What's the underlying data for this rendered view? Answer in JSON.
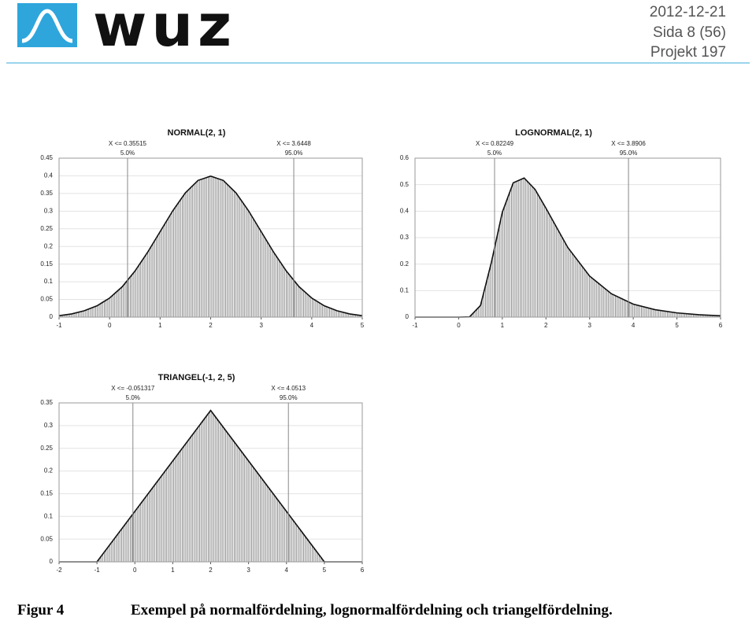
{
  "header": {
    "logo": "wuz",
    "date": "2012-12-21",
    "page": "Sida 8 (56)",
    "project": "Projekt 197"
  },
  "chart_data": [
    {
      "type": "area",
      "title": "NORMAL(2, 1)",
      "x": [
        -1,
        -0.75,
        -0.5,
        -0.25,
        0,
        0.25,
        0.5,
        0.75,
        1,
        1.25,
        1.5,
        1.75,
        2,
        2.25,
        2.5,
        2.75,
        3,
        3.25,
        3.5,
        3.75,
        4,
        4.25,
        4.5,
        4.75,
        5
      ],
      "values": [
        0.004,
        0.009,
        0.018,
        0.032,
        0.054,
        0.086,
        0.13,
        0.183,
        0.242,
        0.301,
        0.352,
        0.387,
        0.399,
        0.387,
        0.352,
        0.301,
        0.242,
        0.183,
        0.13,
        0.086,
        0.054,
        0.032,
        0.018,
        0.009,
        0.004
      ],
      "xlim": [
        -1,
        5
      ],
      "xticks": [
        -1,
        0,
        1,
        2,
        3,
        4,
        5
      ],
      "ylim": [
        0,
        0.45
      ],
      "yticks": [
        0,
        0.05,
        0.1,
        0.15,
        0.2,
        0.25,
        0.3,
        0.35,
        0.4,
        0.45
      ],
      "annotations": [
        {
          "x": 0.35515,
          "label": "X <= 0.35515",
          "percent": "5.0%"
        },
        {
          "x": 3.6448,
          "label": "X <= 3.6448",
          "percent": "95.0%"
        }
      ]
    },
    {
      "type": "area",
      "title": "LOGNORMAL(2, 1)",
      "x": [
        -1,
        0,
        0.25,
        0.5,
        0.75,
        1,
        1.25,
        1.5,
        1.75,
        2,
        2.5,
        3,
        3.5,
        4,
        4.5,
        5,
        5.5,
        6
      ],
      "values": [
        0,
        0,
        0.001,
        0.044,
        0.207,
        0.396,
        0.507,
        0.525,
        0.482,
        0.411,
        0.263,
        0.155,
        0.088,
        0.049,
        0.028,
        0.016,
        0.009,
        0.005
      ],
      "xlim": [
        -1,
        6
      ],
      "xticks": [
        -1,
        0,
        1,
        2,
        3,
        4,
        5,
        6
      ],
      "ylim": [
        0,
        0.6
      ],
      "yticks": [
        0,
        0.1,
        0.2,
        0.3,
        0.4,
        0.5,
        0.6
      ],
      "annotations": [
        {
          "x": 0.82249,
          "label": "X <= 0.82249",
          "percent": "5.0%"
        },
        {
          "x": 3.8906,
          "label": "X <= 3.8906",
          "percent": "95.0%"
        }
      ]
    },
    {
      "type": "area",
      "title": "TRIANGEL(-1, 2, 5)",
      "x": [
        -2,
        -1,
        2,
        5,
        6
      ],
      "values": [
        0,
        0,
        0.3333,
        0,
        0
      ],
      "xlim": [
        -2,
        6
      ],
      "xticks": [
        -2,
        -1,
        0,
        1,
        2,
        3,
        4,
        5,
        6
      ],
      "ylim": [
        0,
        0.35
      ],
      "yticks": [
        0,
        0.05,
        0.1,
        0.15,
        0.2,
        0.25,
        0.3,
        0.35
      ],
      "annotations": [
        {
          "x": -0.051317,
          "label": "X <= -0.051317",
          "percent": "5.0%"
        },
        {
          "x": 4.0513,
          "label": "X <= 4.0513",
          "percent": "95.0%"
        }
      ]
    }
  ],
  "caption": {
    "label": "Figur 4",
    "text": "Exempel på normalfördelning, lognormalfördelning och triangelfördelning."
  }
}
